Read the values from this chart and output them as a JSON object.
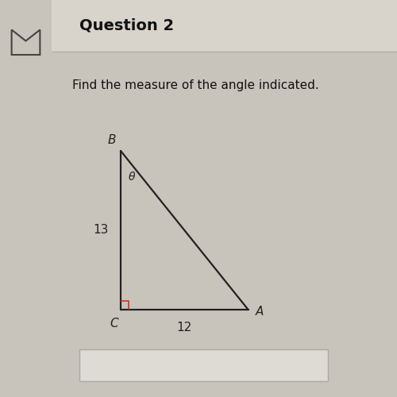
{
  "title": "Question 2",
  "instruction": "Find the measure of the angle indicated.",
  "bg_color": "#c8c4bc",
  "outer_bg": "#c8c4bc",
  "header_bg": "#d8d4cc",
  "content_bg": "#e8e6e0",
  "header_line_color": "#b0aca4",
  "labels": {
    "B": "B",
    "C": "C",
    "A": "A"
  },
  "side_bc": "13",
  "side_ca": "12",
  "angle_label": "θ",
  "right_angle_color": "#cc3322",
  "line_color": "#222222",
  "text_color": "#111111",
  "title_fontsize": 14,
  "instr_fontsize": 11,
  "label_fontsize": 11,
  "side_fontsize": 11
}
